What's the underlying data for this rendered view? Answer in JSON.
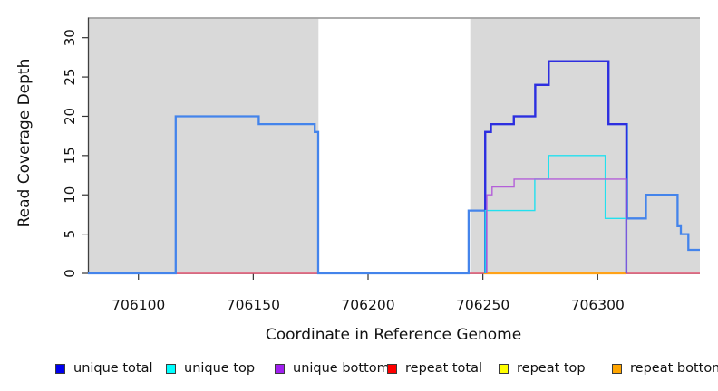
{
  "chart_data": {
    "type": "step-line",
    "title": "",
    "xlabel": "Coordinate in Reference Genome",
    "ylabel": "Read Coverage Depth",
    "xlim": [
      706078,
      706344.5
    ],
    "ylim": [
      0,
      32.5
    ],
    "x_ticks": [
      706100,
      706150,
      706200,
      706250,
      706300
    ],
    "y_ticks": [
      0,
      5,
      10,
      15,
      20,
      25,
      30
    ],
    "grid": false,
    "legend_position": "bottom-horizontal",
    "colors": {
      "shading": "#d9d9d9",
      "frame_top": "#909090",
      "spine": "#3f3f3f",
      "axis_line": "#555555"
    },
    "shaded_regions": [
      [
        706078,
        706178.4
      ],
      [
        706244.5,
        706344.5
      ]
    ],
    "series": [
      {
        "name": "repeat total",
        "color": "#e25573",
        "width": 1.4,
        "points": [
          [
            706078,
            0
          ]
        ],
        "x_end": 706344.5
      },
      {
        "name": "repeat top",
        "color": "#ffee00",
        "width": 1.4,
        "points": [
          [
            706250.5,
            0
          ]
        ],
        "x_end": 706312.5
      },
      {
        "name": "repeat bottom",
        "color": "#ffa218",
        "width": 2.2,
        "points": [
          [
            706250.5,
            0
          ]
        ],
        "x_end": 706312.5
      },
      {
        "name": "total",
        "color": "#4484eb",
        "width": 2.3,
        "points": [
          [
            706078,
            0
          ],
          [
            706116.2,
            20
          ],
          [
            706152.4,
            19
          ],
          [
            706176.8,
            18
          ],
          [
            706178.3,
            0
          ],
          [
            706243.8,
            8
          ],
          [
            706251,
            18
          ],
          [
            706253.5,
            19
          ],
          [
            706263.5,
            20
          ],
          [
            706272.8,
            24
          ],
          [
            706278.7,
            27
          ],
          [
            706304.7,
            19
          ],
          [
            706312.8,
            7
          ],
          [
            706321,
            10
          ],
          [
            706334.8,
            6
          ],
          [
            706336.2,
            5
          ],
          [
            706339.5,
            3
          ]
        ],
        "x_end": 706344.5
      },
      {
        "name": "unique total",
        "color": "#2e2edf",
        "width": 2.3,
        "points": [
          [
            706251,
            0
          ],
          [
            706251,
            18
          ],
          [
            706253.5,
            19
          ],
          [
            706263.5,
            20
          ],
          [
            706272.8,
            24
          ],
          [
            706278.7,
            27
          ],
          [
            706304.7,
            19
          ],
          [
            706312.5,
            0
          ]
        ],
        "x_end": 706312.5
      },
      {
        "name": "unique top",
        "color": "#22e0ee",
        "width": 1.4,
        "points": [
          [
            706251,
            0
          ],
          [
            706251,
            8
          ],
          [
            706272.6,
            12
          ],
          [
            706278.7,
            15
          ],
          [
            706303.3,
            7
          ],
          [
            706312.5,
            0
          ]
        ],
        "x_end": 706312.5
      },
      {
        "name": "unique bottom",
        "color": "#b45fd9",
        "width": 1.4,
        "points": [
          [
            706251.7,
            0
          ],
          [
            706251.7,
            10
          ],
          [
            706254,
            11
          ],
          [
            706263.6,
            12
          ],
          [
            706312.5,
            0
          ]
        ],
        "x_end": 706312.5
      }
    ],
    "legend": [
      {
        "label": "unique total",
        "color": "#0000ee"
      },
      {
        "label": "unique top",
        "color": "#00ffff"
      },
      {
        "label": "unique bottom",
        "color": "#a020f0"
      },
      {
        "label": "repeat total",
        "color": "#ff0000"
      },
      {
        "label": "repeat top",
        "color": "#ffff00"
      },
      {
        "label": "repeat bottom",
        "color": "#ffa500"
      }
    ]
  }
}
